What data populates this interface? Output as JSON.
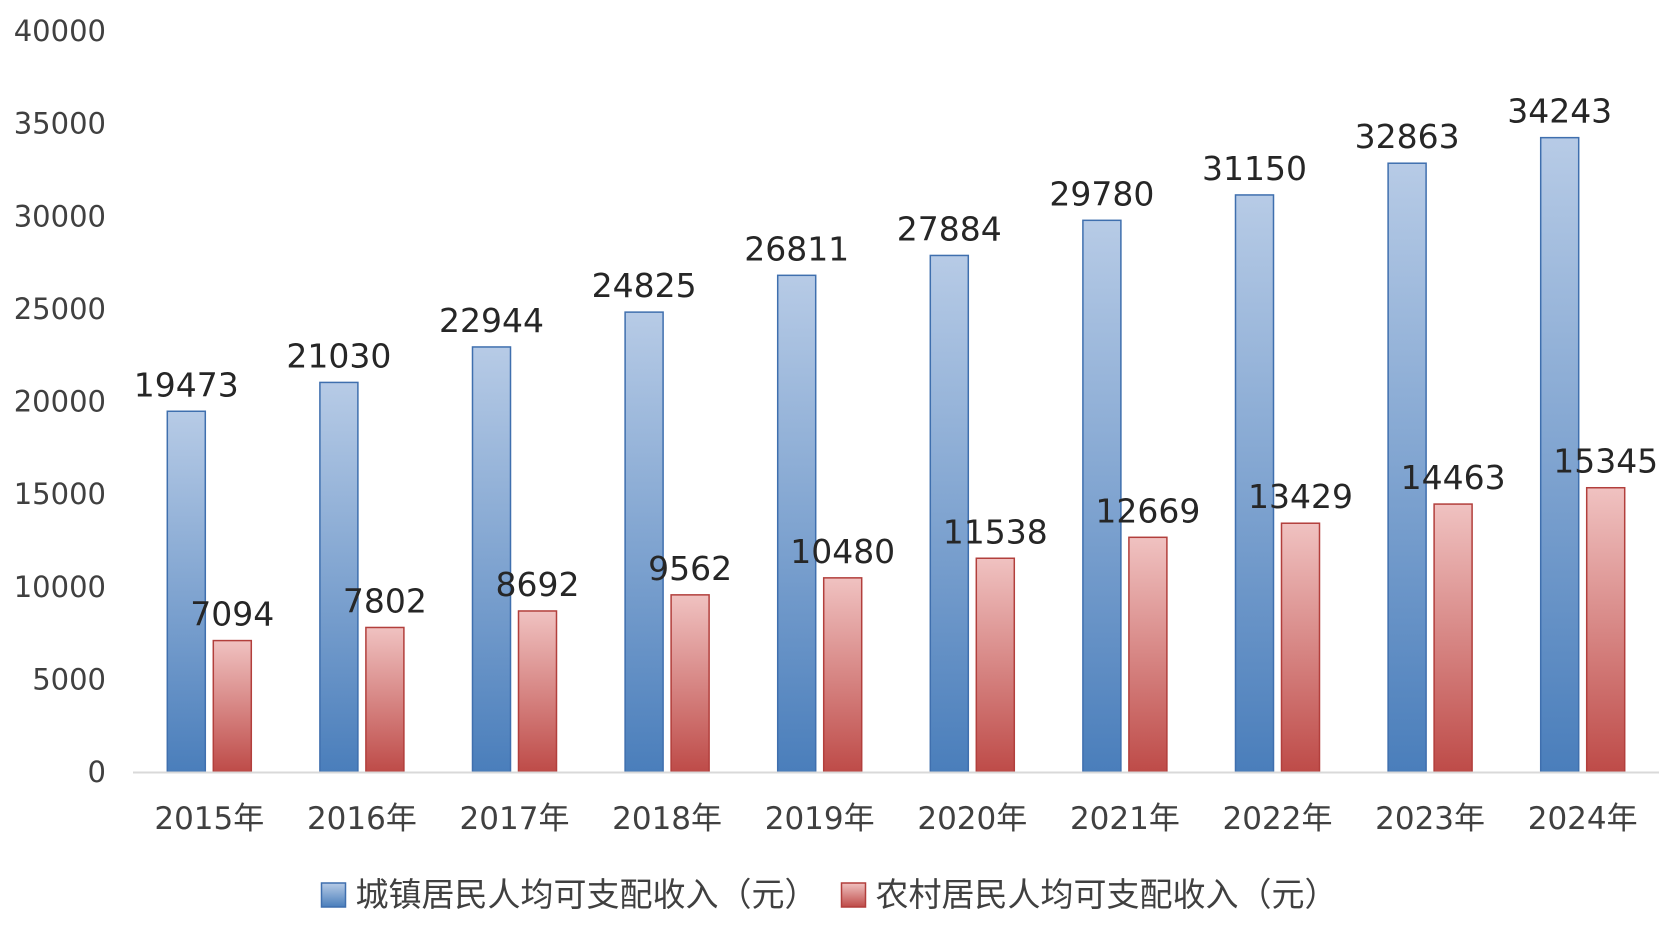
{
  "chart_data": {
    "type": "bar",
    "categories": [
      "2015年",
      "2016年",
      "2017年",
      "2018年",
      "2019年",
      "2020年",
      "2021年",
      "2022年",
      "2023年",
      "2024年"
    ],
    "series": [
      {
        "name": "城镇居民人均可支配收入（元）",
        "values": [
          19473,
          21030,
          22944,
          24825,
          26811,
          27884,
          29780,
          31150,
          32863,
          34243
        ],
        "color_top": "#b7cbe6",
        "color_bottom": "#4a7ebb",
        "stroke": "#3f6fae"
      },
      {
        "name": "农村居民人均可支配收入（元）",
        "values": [
          7094,
          7802,
          8692,
          9562,
          10480,
          11538,
          12669,
          13429,
          14463,
          15345
        ],
        "color_top": "#f0c2c1",
        "color_bottom": "#be4b48",
        "stroke": "#b23f3c"
      }
    ],
    "y_ticks": [
      "0",
      "5000",
      "10000",
      "15000",
      "20000",
      "25000",
      "30000",
      "35000",
      "40000"
    ],
    "ylim": [
      0,
      40000
    ],
    "grid": false,
    "legend_position": "bottom",
    "data_labels": true
  }
}
